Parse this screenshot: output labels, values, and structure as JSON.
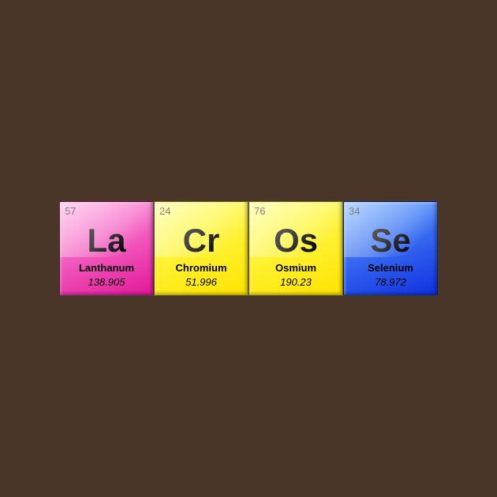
{
  "background_color": "#4a3628",
  "tile_size": 120,
  "tiles": [
    {
      "atomic_number": "57",
      "symbol": "La",
      "name": "Lanthanum",
      "mass": "138.905",
      "color_top": "#ff9ae0",
      "color_bottom": "#e31899"
    },
    {
      "atomic_number": "24",
      "symbol": "Cr",
      "name": "Chromium",
      "mass": "51.996",
      "color_top": "#ffff66",
      "color_bottom": "#ffe300"
    },
    {
      "atomic_number": "76",
      "symbol": "Os",
      "name": "Osmium",
      "mass": "190.23",
      "color_top": "#ffff66",
      "color_bottom": "#ffe300"
    },
    {
      "atomic_number": "34",
      "symbol": "Se",
      "name": "Selenium",
      "mass": "78.972",
      "color_top": "#5aa0ff",
      "color_bottom": "#1030e0"
    }
  ],
  "typography": {
    "number_fontsize": 13,
    "symbol_fontsize": 42,
    "name_fontsize": 13,
    "mass_fontsize": 13,
    "text_color": "#000000"
  }
}
